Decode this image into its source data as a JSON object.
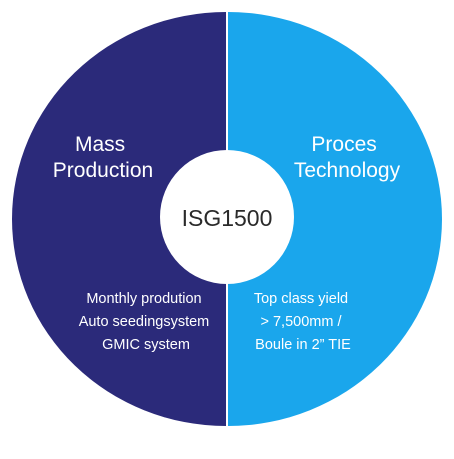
{
  "center": {
    "label": "ISG1500",
    "color": "#ffffff",
    "text_color": "#2a2a2a"
  },
  "left": {
    "title_lines": [
      "Mass",
      "Production"
    ],
    "detail_lines": [
      "Monthly prodution",
      "Auto seedingsystem",
      "GMIC system"
    ],
    "color": "#2b2a7a"
  },
  "right": {
    "title_lines": [
      "Proces",
      "Technology"
    ],
    "detail_lines": [
      "Top class yield",
      "> 7,500mm /",
      "Boule in 2” TIE"
    ],
    "color": "#1aa6ec"
  },
  "divider_color": "#ffffff"
}
